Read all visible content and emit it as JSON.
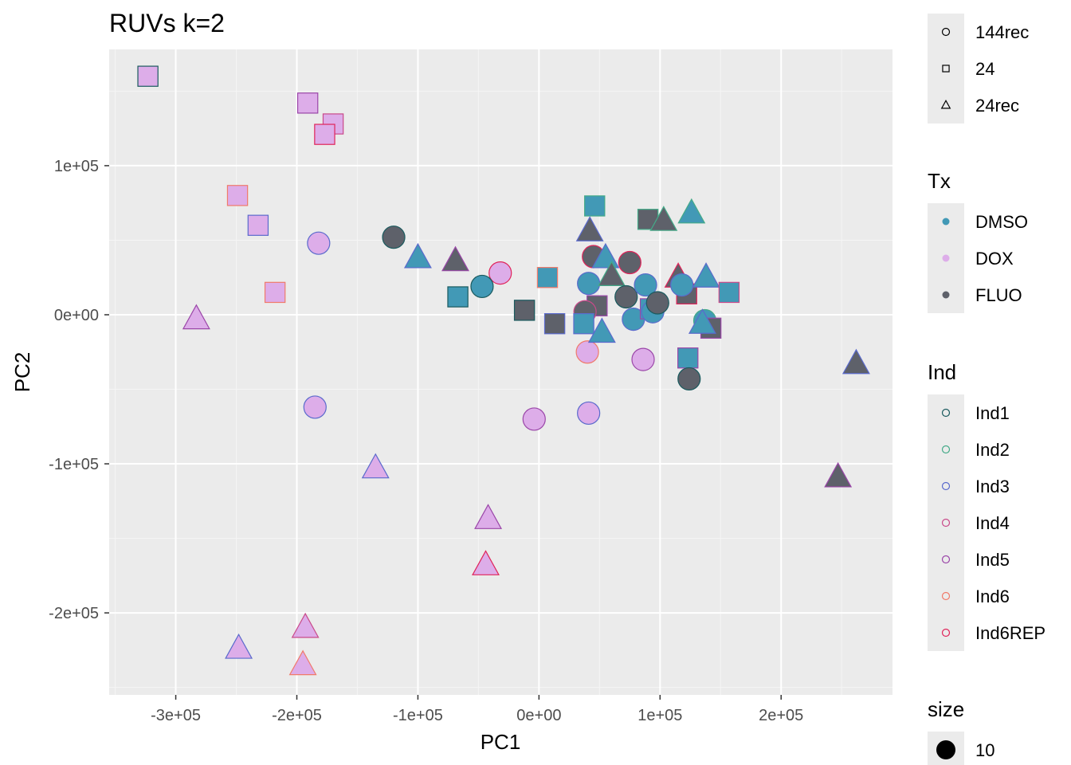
{
  "chart_data": {
    "type": "scatter",
    "title": "RUVs k=2",
    "xlabel": "PC1",
    "ylabel": "PC2",
    "xlim": [
      -355000,
      292000
    ],
    "ylim": [
      -255000,
      178000
    ],
    "x_ticks": [
      -300000,
      -200000,
      -100000,
      0,
      100000,
      200000
    ],
    "x_tick_labels": [
      "-3e+05",
      "-2e+05",
      "-1e+05",
      "0e+00",
      "1e+05",
      "2e+05"
    ],
    "y_ticks": [
      -200000,
      -100000,
      0,
      100000
    ],
    "y_tick_labels": [
      "-2e+05",
      "-1e+05",
      "0e+00",
      "1e+05"
    ],
    "grid": true,
    "legend_position": "right",
    "legends": {
      "shape": {
        "title": "",
        "items": [
          {
            "label": "144rec",
            "shape": "circle"
          },
          {
            "label": "24",
            "shape": "square"
          },
          {
            "label": "24rec",
            "shape": "triangle"
          }
        ]
      },
      "tx": {
        "title": "Tx",
        "items": [
          {
            "label": "DMSO",
            "color": "#4299b6"
          },
          {
            "label": "DOX",
            "color": "#ddade9"
          },
          {
            "label": "FLUO",
            "color": "#5e616a"
          }
        ]
      },
      "ind": {
        "title": "Ind",
        "items": [
          {
            "label": "Ind1",
            "color": "#1a5a5e"
          },
          {
            "label": "Ind2",
            "color": "#44aa88"
          },
          {
            "label": "Ind3",
            "color": "#5a6acc"
          },
          {
            "label": "Ind4",
            "color": "#c94a8a"
          },
          {
            "label": "Ind5",
            "color": "#9a46a8"
          },
          {
            "label": "Ind6",
            "color": "#f07a6a"
          },
          {
            "label": "Ind6REP",
            "color": "#e0245a"
          }
        ]
      },
      "size": {
        "title": "size",
        "items": [
          {
            "label": "10"
          }
        ]
      }
    },
    "points": [
      {
        "x": -323000,
        "y": 160000,
        "shape": "square",
        "tx": "DOX",
        "ind": "Ind1"
      },
      {
        "x": -191000,
        "y": 142000,
        "shape": "square",
        "tx": "DOX",
        "ind": "Ind5"
      },
      {
        "x": -170000,
        "y": 128000,
        "shape": "square",
        "tx": "DOX",
        "ind": "Ind4"
      },
      {
        "x": -177000,
        "y": 121000,
        "shape": "square",
        "tx": "DOX",
        "ind": "Ind6REP"
      },
      {
        "x": -249000,
        "y": 80000,
        "shape": "square",
        "tx": "DOX",
        "ind": "Ind6"
      },
      {
        "x": -232000,
        "y": 60000,
        "shape": "square",
        "tx": "DOX",
        "ind": "Ind3"
      },
      {
        "x": -218000,
        "y": 15000,
        "shape": "square",
        "tx": "DOX",
        "ind": "Ind6"
      },
      {
        "x": -182000,
        "y": 48000,
        "shape": "circle",
        "tx": "DOX",
        "ind": "Ind3"
      },
      {
        "x": -283000,
        "y": -3000,
        "shape": "triangle",
        "tx": "DOX",
        "ind": "Ind5"
      },
      {
        "x": -185000,
        "y": -62000,
        "shape": "circle",
        "tx": "DOX",
        "ind": "Ind3"
      },
      {
        "x": -135000,
        "y": -103000,
        "shape": "triangle",
        "tx": "DOX",
        "ind": "Ind3"
      },
      {
        "x": -42000,
        "y": -137000,
        "shape": "triangle",
        "tx": "DOX",
        "ind": "Ind5"
      },
      {
        "x": -44000,
        "y": -168000,
        "shape": "triangle",
        "tx": "DOX",
        "ind": "Ind6REP"
      },
      {
        "x": -193000,
        "y": -210000,
        "shape": "triangle",
        "tx": "DOX",
        "ind": "Ind4"
      },
      {
        "x": -248000,
        "y": -224000,
        "shape": "triangle",
        "tx": "DOX",
        "ind": "Ind3"
      },
      {
        "x": -195000,
        "y": -235000,
        "shape": "triangle",
        "tx": "DOX",
        "ind": "Ind6"
      },
      {
        "x": -32000,
        "y": 28000,
        "shape": "circle",
        "tx": "DOX",
        "ind": "Ind6REP"
      },
      {
        "x": -4000,
        "y": -70000,
        "shape": "circle",
        "tx": "DOX",
        "ind": "Ind5"
      },
      {
        "x": 40000,
        "y": -25000,
        "shape": "circle",
        "tx": "DOX",
        "ind": "Ind6"
      },
      {
        "x": 41000,
        "y": -66000,
        "shape": "circle",
        "tx": "DOX",
        "ind": "Ind3"
      },
      {
        "x": 86000,
        "y": -30000,
        "shape": "circle",
        "tx": "DOX",
        "ind": "Ind5"
      },
      {
        "x": -120000,
        "y": 52000,
        "shape": "circle",
        "tx": "FLUO",
        "ind": "Ind1"
      },
      {
        "x": -100000,
        "y": 38000,
        "shape": "triangle",
        "tx": "DMSO",
        "ind": "Ind3"
      },
      {
        "x": -69000,
        "y": 36000,
        "shape": "triangle",
        "tx": "FLUO",
        "ind": "Ind5"
      },
      {
        "x": -67000,
        "y": 12000,
        "shape": "square",
        "tx": "DMSO",
        "ind": "Ind1"
      },
      {
        "x": -47000,
        "y": 19000,
        "shape": "circle",
        "tx": "DMSO",
        "ind": "Ind1"
      },
      {
        "x": -12000,
        "y": 3000,
        "shape": "square",
        "tx": "FLUO",
        "ind": "Ind1"
      },
      {
        "x": 7000,
        "y": 25000,
        "shape": "square",
        "tx": "DMSO",
        "ind": "Ind6"
      },
      {
        "x": 13000,
        "y": -6000,
        "shape": "square",
        "tx": "FLUO",
        "ind": "Ind3"
      },
      {
        "x": 46000,
        "y": 73000,
        "shape": "square",
        "tx": "DMSO",
        "ind": "Ind2"
      },
      {
        "x": 42000,
        "y": 56000,
        "shape": "triangle",
        "tx": "FLUO",
        "ind": "Ind3"
      },
      {
        "x": 45000,
        "y": 39000,
        "shape": "circle",
        "tx": "FLUO",
        "ind": "Ind6REP"
      },
      {
        "x": 55000,
        "y": 38000,
        "shape": "triangle",
        "tx": "DMSO",
        "ind": "Ind3"
      },
      {
        "x": 41000,
        "y": 21000,
        "shape": "circle",
        "tx": "DMSO",
        "ind": "Ind3"
      },
      {
        "x": 60000,
        "y": 26000,
        "shape": "triangle",
        "tx": "FLUO",
        "ind": "Ind2"
      },
      {
        "x": 48000,
        "y": 6000,
        "shape": "square",
        "tx": "FLUO",
        "ind": "Ind5"
      },
      {
        "x": 38000,
        "y": 2000,
        "shape": "circle",
        "tx": "FLUO",
        "ind": "Ind4"
      },
      {
        "x": 37000,
        "y": -6000,
        "shape": "square",
        "tx": "DMSO",
        "ind": "Ind3"
      },
      {
        "x": 52000,
        "y": -12000,
        "shape": "triangle",
        "tx": "DMSO",
        "ind": "Ind3"
      },
      {
        "x": 75000,
        "y": 35000,
        "shape": "circle",
        "tx": "FLUO",
        "ind": "Ind6REP"
      },
      {
        "x": 72000,
        "y": 12000,
        "shape": "circle",
        "tx": "FLUO",
        "ind": "Ind1"
      },
      {
        "x": 78000,
        "y": -3000,
        "shape": "circle",
        "tx": "DMSO",
        "ind": "Ind3"
      },
      {
        "x": 88000,
        "y": 20000,
        "shape": "circle",
        "tx": "DMSO",
        "ind": "Ind3"
      },
      {
        "x": 92000,
        "y": 4000,
        "shape": "square",
        "tx": "DMSO",
        "ind": "Ind5"
      },
      {
        "x": 94000,
        "y": 2000,
        "shape": "circle",
        "tx": "DMSO",
        "ind": "Ind3"
      },
      {
        "x": 98000,
        "y": 8000,
        "shape": "circle",
        "tx": "FLUO",
        "ind": "Ind1"
      },
      {
        "x": 90000,
        "y": 64000,
        "shape": "square",
        "tx": "FLUO",
        "ind": "Ind2"
      },
      {
        "x": 103000,
        "y": 63000,
        "shape": "triangle",
        "tx": "FLUO",
        "ind": "Ind2"
      },
      {
        "x": 126000,
        "y": 68000,
        "shape": "triangle",
        "tx": "DMSO",
        "ind": "Ind2"
      },
      {
        "x": 115000,
        "y": 25000,
        "shape": "triangle",
        "tx": "FLUO",
        "ind": "Ind6REP"
      },
      {
        "x": 122000,
        "y": 14000,
        "shape": "square",
        "tx": "FLUO",
        "ind": "Ind6REP"
      },
      {
        "x": 118000,
        "y": 20000,
        "shape": "circle",
        "tx": "DMSO",
        "ind": "Ind3"
      },
      {
        "x": 138000,
        "y": 25000,
        "shape": "triangle",
        "tx": "DMSO",
        "ind": "Ind3"
      },
      {
        "x": 157000,
        "y": 15000,
        "shape": "square",
        "tx": "DMSO",
        "ind": "Ind4"
      },
      {
        "x": 137000,
        "y": -4000,
        "shape": "circle",
        "tx": "DMSO",
        "ind": "Ind2"
      },
      {
        "x": 142000,
        "y": -9000,
        "shape": "square",
        "tx": "FLUO",
        "ind": "Ind5"
      },
      {
        "x": 135000,
        "y": -6000,
        "shape": "triangle",
        "tx": "DMSO",
        "ind": "Ind3"
      },
      {
        "x": 123000,
        "y": -29000,
        "shape": "square",
        "tx": "DMSO",
        "ind": "Ind5"
      },
      {
        "x": 124000,
        "y": -43000,
        "shape": "circle",
        "tx": "FLUO",
        "ind": "Ind1"
      },
      {
        "x": 262000,
        "y": -33000,
        "shape": "triangle",
        "tx": "FLUO",
        "ind": "Ind3"
      },
      {
        "x": 247000,
        "y": -109000,
        "shape": "triangle",
        "tx": "FLUO",
        "ind": "Ind5"
      }
    ]
  }
}
